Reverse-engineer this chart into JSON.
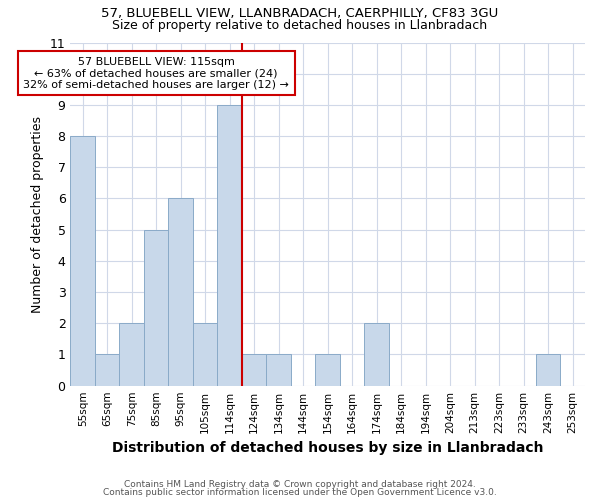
{
  "title_line1": "57, BLUEBELL VIEW, LLANBRADACH, CAERPHILLY, CF83 3GU",
  "title_line2": "Size of property relative to detached houses in Llanbradach",
  "xlabel": "Distribution of detached houses by size in Llanbradach",
  "ylabel": "Number of detached properties",
  "footnote1": "Contains HM Land Registry data © Crown copyright and database right 2024.",
  "footnote2": "Contains public sector information licensed under the Open Government Licence v3.0.",
  "annotation_line1": "57 BLUEBELL VIEW: 115sqm",
  "annotation_line2": "← 63% of detached houses are smaller (24)",
  "annotation_line3": "32% of semi-detached houses are larger (12) →",
  "bar_color": "#c8d8ea",
  "bar_edge_color": "#8aaac8",
  "reference_line_color": "#cc0000",
  "annotation_box_color": "#cc0000",
  "categories": [
    "55sqm",
    "65sqm",
    "75sqm",
    "85sqm",
    "95sqm",
    "105sqm",
    "114sqm",
    "124sqm",
    "134sqm",
    "144sqm",
    "154sqm",
    "164sqm",
    "174sqm",
    "184sqm",
    "194sqm",
    "204sqm",
    "213sqm",
    "223sqm",
    "233sqm",
    "243sqm",
    "253sqm"
  ],
  "values": [
    8,
    1,
    2,
    5,
    6,
    2,
    9,
    1,
    1,
    0,
    1,
    0,
    2,
    0,
    0,
    0,
    0,
    0,
    0,
    1,
    0
  ],
  "highlight_bar_index": 6,
  "ylim": [
    0,
    11
  ],
  "background_color": "#ffffff",
  "plot_background": "#ffffff",
  "grid_color": "#d0d8e8"
}
